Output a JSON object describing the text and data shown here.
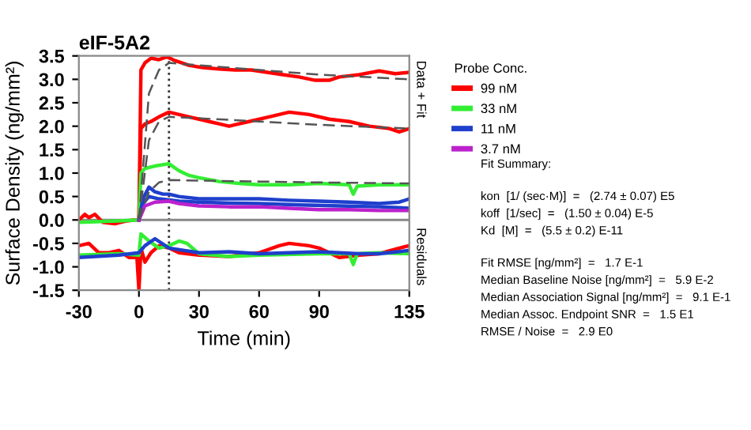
{
  "chart_data": {
    "type": "line",
    "title": "eIF-5A2",
    "ylabel": "Surface Density (ng/mm²)",
    "xlabel": "Time (min)",
    "legend_title": "Probe Conc.",
    "xlim": [
      -30,
      135
    ],
    "xticks": [
      -30,
      0,
      30,
      60,
      90,
      135
    ],
    "ylim": [
      -1.5,
      3.5
    ],
    "yticks": [
      -1.5,
      {
        "value": -1,
        "label": "-1.0"
      },
      -0.5,
      {
        "value": 0,
        "label": "0.0"
      },
      0.5,
      {
        "value": 1,
        "label": "1.0"
      },
      1.5,
      {
        "value": 2,
        "label": "2.0"
      },
      2.5,
      {
        "value": 3,
        "label": "3.0"
      },
      3.5
    ],
    "grid": false,
    "legend": "right",
    "line_style": "solid",
    "marker": "none",
    "series": [
      {
        "name": "99 nM",
        "color": "#ff0000",
        "x": [
          -30,
          -27,
          -25,
          -22,
          -18,
          -12,
          -6,
          -2,
          0,
          1,
          3,
          6,
          10,
          14,
          18,
          25,
          32,
          40,
          48,
          56,
          64,
          72,
          80,
          88,
          95,
          100,
          110,
          120,
          128,
          135
        ],
        "values": [
          0.0,
          0.12,
          0.05,
          0.12,
          -0.05,
          -0.08,
          -0.02,
          0.0,
          0.0,
          3.2,
          3.35,
          3.45,
          3.42,
          3.48,
          3.4,
          3.3,
          3.25,
          3.22,
          3.2,
          3.2,
          3.15,
          3.1,
          3.05,
          2.98,
          2.98,
          3.05,
          3.1,
          3.18,
          3.12,
          3.15
        ]
      },
      {
        "color": "#ff0000",
        "x": [
          0,
          1,
          3,
          6,
          10,
          15,
          20,
          25,
          30,
          35,
          40,
          45,
          50,
          55,
          65,
          75,
          85,
          95,
          105,
          115,
          125,
          130,
          135
        ],
        "values": [
          0.0,
          1.95,
          2.05,
          2.1,
          2.2,
          2.3,
          2.25,
          2.2,
          2.15,
          2.1,
          2.05,
          2.0,
          2.05,
          2.1,
          2.2,
          2.3,
          2.25,
          2.15,
          2.1,
          2.0,
          1.95,
          1.88,
          1.95
        ]
      },
      {
        "name": "33 nM",
        "color": "#33ee33",
        "x": [
          -30,
          -10,
          0,
          1,
          3,
          8,
          15,
          20,
          25,
          30,
          40,
          50,
          60,
          75,
          90,
          105,
          107,
          109,
          120,
          135
        ],
        "values": [
          -0.05,
          -0.02,
          0.0,
          1.0,
          1.1,
          1.15,
          1.2,
          1.05,
          0.95,
          0.9,
          0.82,
          0.78,
          0.75,
          0.75,
          0.78,
          0.75,
          0.55,
          0.72,
          0.75,
          0.75
        ]
      },
      {
        "name": "11 nM",
        "color": "#1f3fcc",
        "x": [
          0,
          2,
          5,
          8,
          12,
          15,
          20,
          30,
          45,
          60,
          75,
          90,
          105,
          120,
          130,
          135
        ],
        "values": [
          0.0,
          0.45,
          0.7,
          0.6,
          0.55,
          0.55,
          0.5,
          0.45,
          0.45,
          0.45,
          0.42,
          0.4,
          0.38,
          0.35,
          0.38,
          0.45
        ]
      },
      {
        "color": "#1f3fcc",
        "x": [
          0,
          2,
          5,
          10,
          20,
          30,
          45,
          60,
          80,
          100,
          120,
          135
        ],
        "values": [
          0.0,
          0.35,
          0.5,
          0.45,
          0.4,
          0.38,
          0.36,
          0.35,
          0.32,
          0.3,
          0.28,
          0.25
        ]
      },
      {
        "name": "3.7 nM",
        "color": "#bb22cc",
        "x": [
          0,
          3,
          8,
          15,
          20,
          30,
          45,
          60,
          75,
          90,
          105,
          120,
          135
        ],
        "values": [
          0.0,
          0.3,
          0.38,
          0.4,
          0.35,
          0.3,
          0.28,
          0.28,
          0.25,
          0.22,
          0.22,
          0.2,
          0.2
        ]
      },
      {
        "color": "#555555",
        "line_style": "dashed",
        "x": [
          0,
          5,
          10,
          15,
          30,
          60,
          90,
          135
        ],
        "values": [
          0.0,
          2.7,
          3.2,
          3.35,
          3.3,
          3.2,
          3.1,
          3.0
        ]
      },
      {
        "color": "#555555",
        "line_style": "dashed",
        "x": [
          0,
          5,
          10,
          15,
          30,
          60,
          90,
          135
        ],
        "values": [
          0.0,
          1.7,
          2.1,
          2.2,
          2.17,
          2.1,
          2.03,
          1.95
        ]
      },
      {
        "color": "#555555",
        "line_style": "dashed",
        "x": [
          0,
          5,
          10,
          15,
          30,
          60,
          90,
          135
        ],
        "values": [
          0.0,
          0.6,
          0.8,
          0.85,
          0.84,
          0.82,
          0.8,
          0.78
        ]
      },
      {
        "color": "#ff0000",
        "x": [
          -30,
          -25,
          -20,
          -15,
          -10,
          -5,
          -1,
          0,
          1,
          3,
          6,
          10,
          15,
          20,
          30,
          45,
          60,
          70,
          75,
          85,
          90,
          100,
          110,
          120,
          130,
          135
        ],
        "values": [
          -0.55,
          -0.5,
          -0.7,
          -0.7,
          -0.65,
          -0.8,
          -0.8,
          -1.5,
          -0.6,
          -0.9,
          -0.7,
          -0.55,
          -0.6,
          -0.7,
          -0.75,
          -0.78,
          -0.7,
          -0.55,
          -0.5,
          -0.55,
          -0.6,
          -0.8,
          -0.75,
          -0.72,
          -0.6,
          -0.55
        ]
      },
      {
        "color": "#33ee33",
        "x": [
          -30,
          -10,
          0,
          1,
          5,
          10,
          15,
          20,
          24,
          30,
          45,
          60,
          90,
          105,
          107,
          109,
          120,
          135
        ],
        "values": [
          -0.75,
          -0.72,
          -0.75,
          -0.3,
          -0.45,
          -0.6,
          -0.55,
          -0.45,
          -0.5,
          -0.72,
          -0.78,
          -0.75,
          -0.72,
          -0.72,
          -0.95,
          -0.72,
          -0.7,
          -0.72
        ]
      },
      {
        "color": "#1f3fcc",
        "x": [
          -30,
          -10,
          0,
          3,
          8,
          15,
          30,
          45,
          60,
          90,
          110,
          120,
          135
        ],
        "values": [
          -0.8,
          -0.75,
          -0.7,
          -0.55,
          -0.4,
          -0.6,
          -0.7,
          -0.68,
          -0.72,
          -0.68,
          -0.72,
          -0.72,
          -0.65
        ]
      }
    ],
    "ref_lines": [
      {
        "axis": "x",
        "value": 15,
        "color": "#333333",
        "line_style": "dotted"
      },
      {
        "axis": "y",
        "value": 0,
        "color": "#888888",
        "line_style": "solid"
      }
    ],
    "annotations": [
      "Data + Fit",
      "Residuals",
      "Fit Summary:",
      "kon  [1/ (sec·M)]  =   (2.74 ± 0.07) E5",
      "koff  [1/sec]  =   (1.50 ± 0.04) E-5",
      "Kd  [M]  =   (5.5 ± 0.2) E-11",
      "Fit RMSE [ng/mm²]  =   1.7 E-1",
      "Median Baseline Noise [ng/mm²]  =   5.9 E-2",
      "Median Association Signal [ng/mm²]  =   9.1 E-1",
      "Median Assoc. Endpoint SNR  =   1.5 E1",
      "RMSE / Noise  =   2.9 E0"
    ]
  }
}
